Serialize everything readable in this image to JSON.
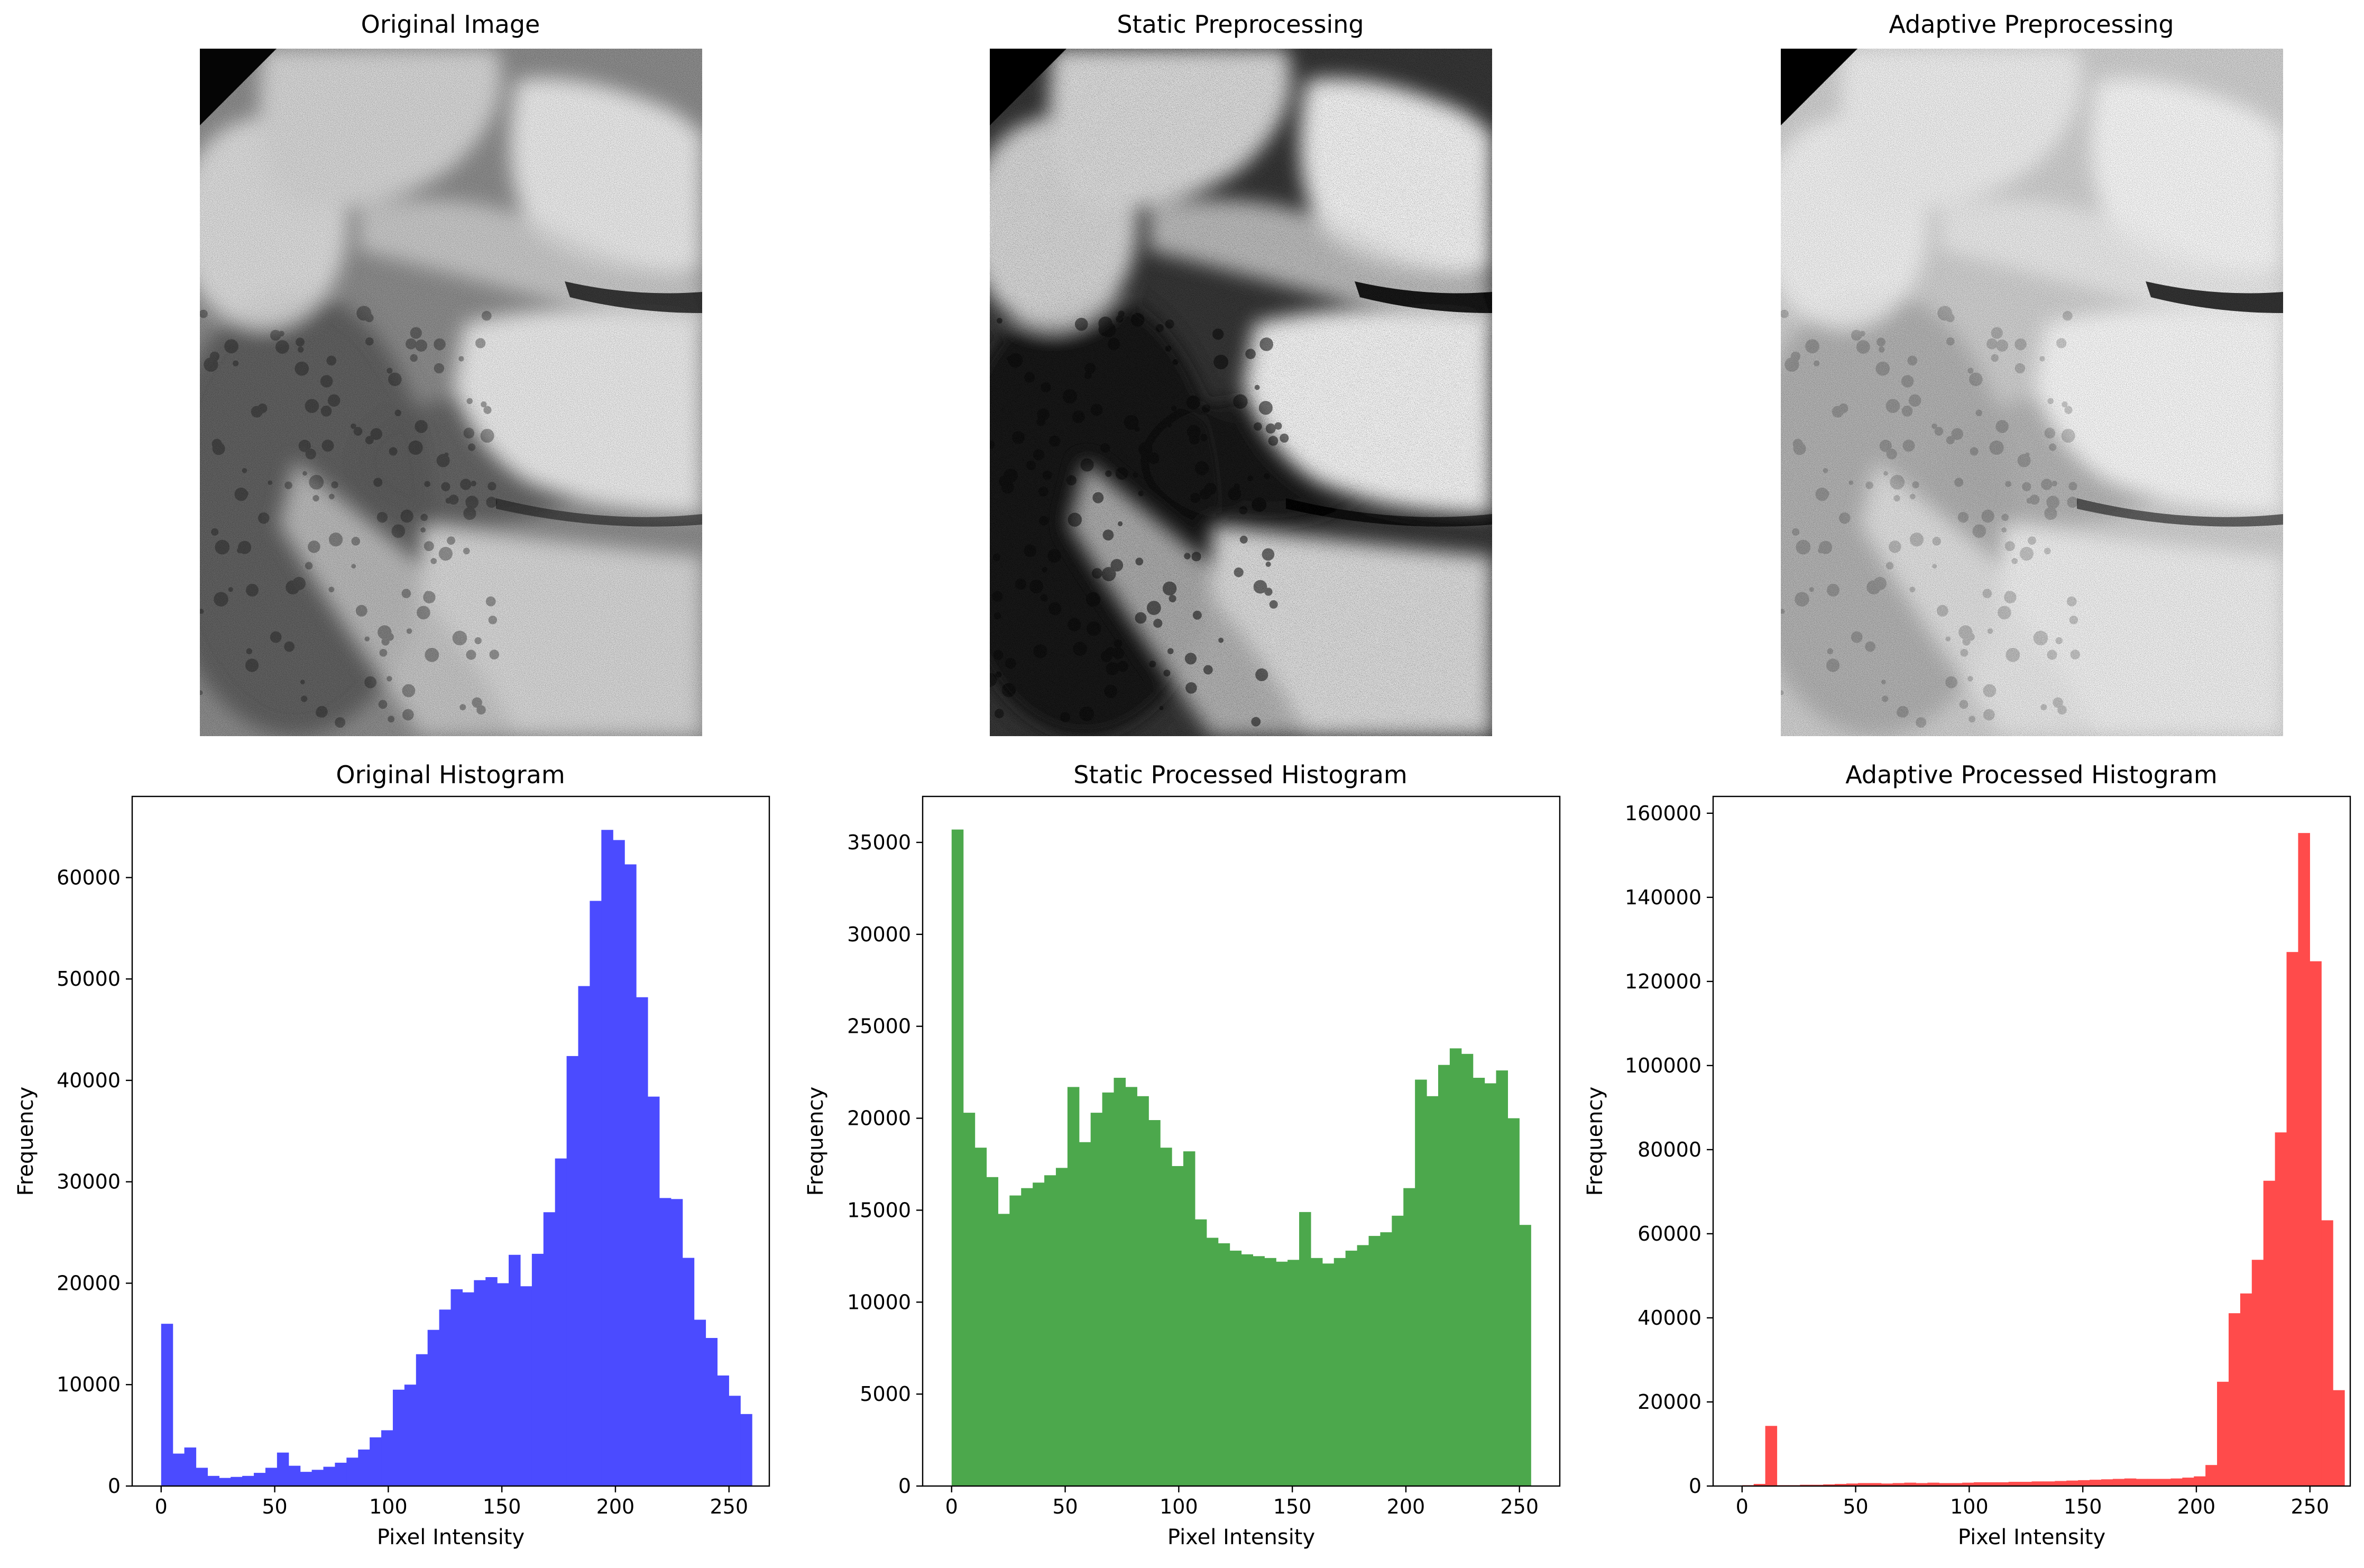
{
  "figure": {
    "panels": [
      {
        "title": "Original Image",
        "kind": "dental-xray",
        "variant": "original"
      },
      {
        "title": "Static Preprocessing",
        "kind": "dental-xray",
        "variant": "static"
      },
      {
        "title": "Adaptive Preprocessing",
        "kind": "dental-xray",
        "variant": "adaptive"
      }
    ]
  },
  "chart_data": [
    {
      "type": "bar",
      "title": "Original Histogram",
      "xlabel": "Pixel Intensity",
      "ylabel": "Frequency",
      "color": "#4b4bff",
      "bin_width": 5.1,
      "xlim": [
        -12.75,
        267.75
      ],
      "ylim": [
        0,
        68000
      ],
      "xticks": [
        0,
        50,
        100,
        150,
        200,
        250
      ],
      "yticks": [
        0,
        10000,
        20000,
        30000,
        40000,
        50000,
        60000
      ],
      "grid": false,
      "values": [
        16000,
        3200,
        3800,
        1800,
        1000,
        800,
        900,
        1000,
        1300,
        1800,
        3300,
        2000,
        1400,
        1600,
        1900,
        2300,
        2800,
        3600,
        4800,
        5500,
        9500,
        10000,
        13000,
        15400,
        17400,
        19400,
        19100,
        20300,
        20600,
        20000,
        22800,
        19700,
        22900,
        27000,
        32300,
        42400,
        49300,
        57700,
        64700,
        63700,
        61300,
        48200,
        38400,
        28400,
        28300,
        22500,
        16400,
        14600,
        10900,
        8900,
        7100
      ]
    },
    {
      "type": "bar",
      "title": "Static Processed Histogram",
      "xlabel": "Pixel Intensity",
      "ylabel": "Frequency",
      "color": "#4ca84c",
      "bin_width": 5.1,
      "xlim": [
        -12.75,
        267.75
      ],
      "ylim": [
        0,
        37500
      ],
      "xticks": [
        0,
        50,
        100,
        150,
        200,
        250
      ],
      "yticks": [
        0,
        5000,
        10000,
        15000,
        20000,
        25000,
        30000,
        35000
      ],
      "grid": false,
      "values": [
        35700,
        20300,
        18400,
        16800,
        14800,
        15800,
        16200,
        16500,
        16900,
        17300,
        21700,
        18700,
        20300,
        21400,
        22200,
        21700,
        21200,
        19900,
        18400,
        17400,
        18200,
        14500,
        13500,
        13200,
        12800,
        12600,
        12500,
        12400,
        12200,
        12300,
        14900,
        12400,
        12100,
        12400,
        12800,
        13100,
        13600,
        13800,
        14700,
        16200,
        22100,
        21200,
        22900,
        23800,
        23500,
        22200,
        21900,
        22600,
        20000,
        14200
      ]
    },
    {
      "type": "bar",
      "title": "Adaptive Processed Histogram",
      "xlabel": "Pixel Intensity",
      "ylabel": "Frequency",
      "color": "#ff4b4b",
      "bin_width": 5.1,
      "xlim": [
        -12.75,
        267.75
      ],
      "ylim": [
        0,
        164000
      ],
      "xticks": [
        0,
        50,
        100,
        150,
        200,
        250
      ],
      "yticks": [
        0,
        20000,
        40000,
        60000,
        80000,
        100000,
        120000,
        140000,
        160000
      ],
      "grid": false,
      "values": [
        200,
        500,
        14300,
        200,
        200,
        300,
        300,
        400,
        500,
        600,
        700,
        700,
        600,
        700,
        800,
        700,
        800,
        700,
        700,
        800,
        900,
        900,
        900,
        1000,
        1000,
        1100,
        1100,
        1200,
        1300,
        1400,
        1500,
        1600,
        1700,
        1800,
        1700,
        1700,
        1700,
        1800,
        2000,
        2300,
        5000,
        24800,
        41100,
        45800,
        53800,
        72600,
        84100,
        127000,
        155300,
        124800,
        63200,
        22800
      ]
    }
  ]
}
